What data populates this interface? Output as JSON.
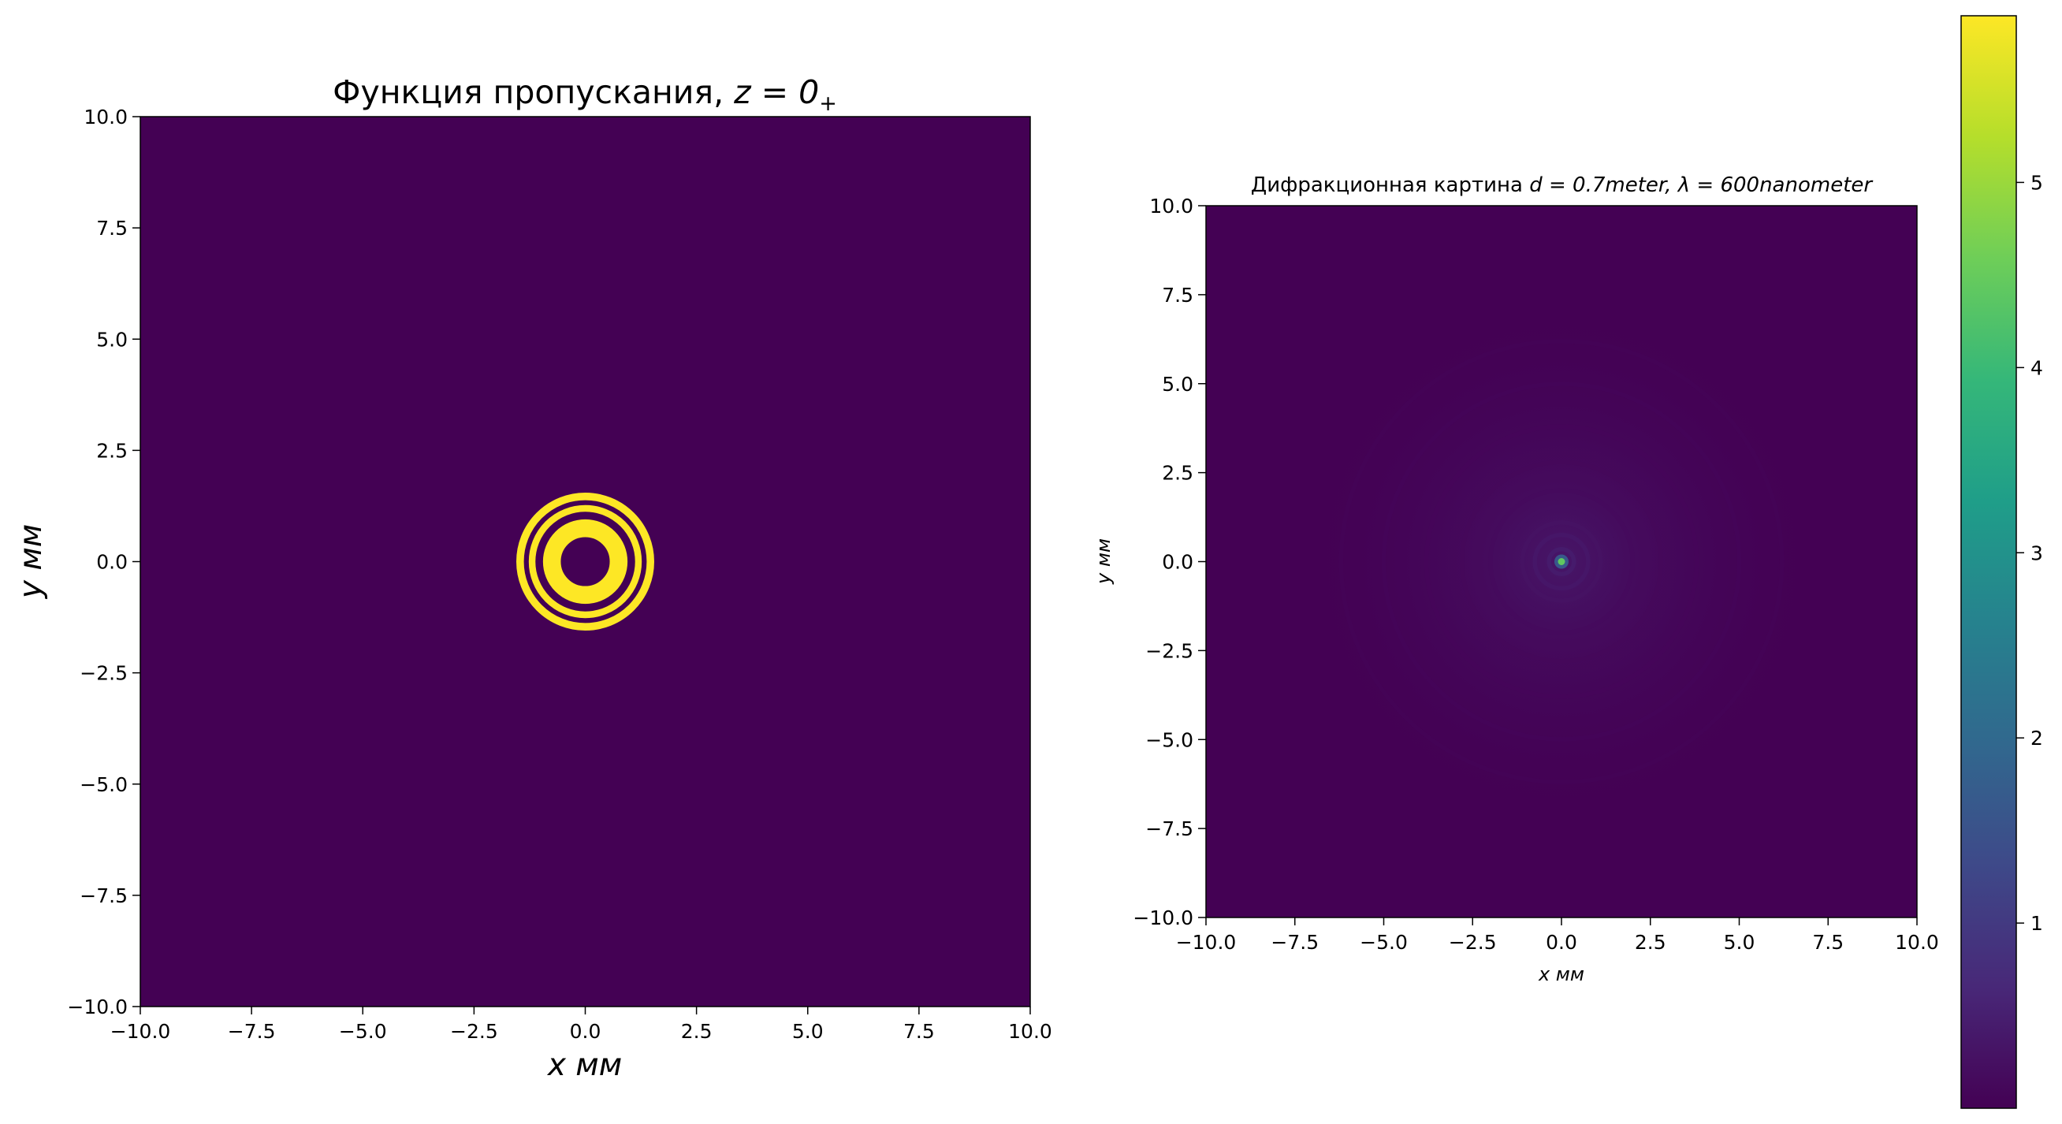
{
  "colors": {
    "background": "#440154",
    "ring": "#fde725",
    "viridis": [
      "#440154",
      "#482878",
      "#3e4989",
      "#31688e",
      "#26828e",
      "#1f9e89",
      "#35b779",
      "#6ece58",
      "#b5de2b",
      "#fde725"
    ]
  },
  "chart_data": [
    {
      "type": "heatmap",
      "title_prefix": "Функция пропускания, ",
      "title_math": "z = 0",
      "title_sub": "+",
      "xlabel": "x мм",
      "ylabel": "y мм",
      "xlim": [
        -10,
        10
      ],
      "ylim": [
        -10,
        10
      ],
      "xticks": [
        "−10.0",
        "−7.5",
        "−5.0",
        "−2.5",
        "0.0",
        "2.5",
        "5.0",
        "7.5",
        "10.0"
      ],
      "yticks": [
        "10.0",
        "7.5",
        "5.0",
        "2.5",
        "0.0",
        "−2.5",
        "−5.0",
        "−7.5",
        "−10.0"
      ],
      "background_value": 0,
      "rings": [
        {
          "inner_radius_mm": 0.55,
          "outer_radius_mm": 0.95,
          "value": 1
        },
        {
          "inner_radius_mm": 1.12,
          "outer_radius_mm": 1.27,
          "value": 1
        },
        {
          "inner_radius_mm": 1.38,
          "outer_radius_mm": 1.55,
          "value": 1
        }
      ]
    },
    {
      "type": "heatmap",
      "title_prefix": "Дифракционная картина ",
      "title_math": "d = 0.7meter, λ = 600nanometer",
      "xlabel": "x мм",
      "ylabel": "y мм",
      "xlim": [
        -10,
        10
      ],
      "ylim": [
        -10,
        10
      ],
      "xticks": [
        "−10.0",
        "−7.5",
        "−5.0",
        "−2.5",
        "0.0",
        "2.5",
        "5.0",
        "7.5",
        "10.0"
      ],
      "yticks": [
        "10.0",
        "7.5",
        "5.0",
        "2.5",
        "0.0",
        "−2.5",
        "−5.0",
        "−7.5",
        "−10.0"
      ],
      "central_peak_value": 5.9,
      "background_value": 0.05,
      "diffraction_rings": [
        {
          "radius_mm": 0.35,
          "value": 0.45
        },
        {
          "radius_mm": 0.75,
          "value": 0.38
        },
        {
          "radius_mm": 1.1,
          "value": 0.3
        },
        {
          "radius_mm": 1.55,
          "value": 0.22
        },
        {
          "radius_mm": 2.0,
          "value": 0.16
        },
        {
          "radius_mm": 2.8,
          "value": 0.12
        },
        {
          "radius_mm": 3.8,
          "value": 0.09
        },
        {
          "radius_mm": 5.0,
          "value": 0.07
        },
        {
          "radius_mm": 6.2,
          "value": 0.05
        }
      ],
      "colorbar": {
        "min": 0,
        "max": 5.9,
        "ticks": [
          {
            "value": 1,
            "label": "1"
          },
          {
            "value": 2,
            "label": "2"
          },
          {
            "value": 3,
            "label": "3"
          },
          {
            "value": 4,
            "label": "4"
          },
          {
            "value": 5,
            "label": "5"
          }
        ]
      }
    }
  ]
}
